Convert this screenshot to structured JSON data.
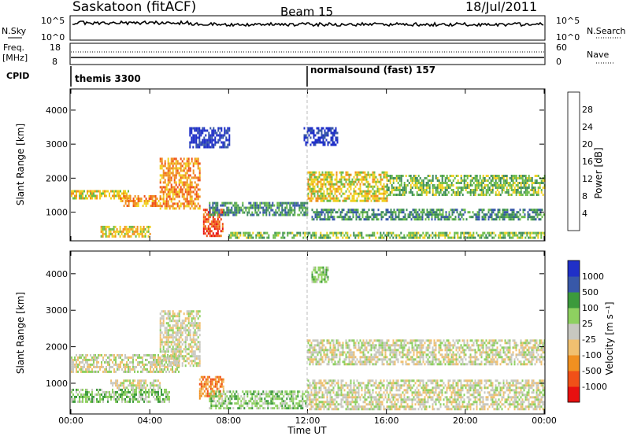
{
  "header": {
    "title": "Saskatoon (fitACF)",
    "beam": "Beam 15",
    "date": "18/Jul/2011"
  },
  "strip_panel": {
    "nsky_label": "N.Sky",
    "nsky_ticks": [
      "10^5",
      "10^0"
    ],
    "nsearch_label": "N.Search",
    "nsearch_ticks": [
      "10^5",
      "10^0"
    ],
    "freq_label": "Freq.",
    "freq_unit": "[MHz]",
    "freq_ticks": [
      "18",
      "8"
    ],
    "nave_label": "Nave",
    "nave_ticks": [
      "60",
      "0"
    ],
    "cpid_label": "CPID",
    "cpid_segments": [
      "themis 3300",
      "normalsound (fast) 157"
    ]
  },
  "colors": {
    "power_scale": [
      "#2030c8",
      "#3858a8",
      "#3c8a5a",
      "#6abb4a",
      "#f0d020",
      "#f09020",
      "#f05018",
      "#e81010"
    ],
    "velocity_scale": [
      "#e81010",
      "#f05018",
      "#f09020",
      "#f0c070",
      "#c8c8c0",
      "#8ed060",
      "#3c9a3c",
      "#3858a8",
      "#2030c8"
    ],
    "ground_scatter": "#c8c8c0"
  },
  "chart_data": [
    {
      "type": "heatmap",
      "panel": "power",
      "ylabel": "Slant Range [km]",
      "y_ticks": [
        "1000",
        "2000",
        "3000",
        "4000"
      ],
      "x_ticks": [
        "00:00",
        "04:00",
        "08:00",
        "12:00",
        "16:00",
        "20:00",
        "00:00"
      ],
      "colorbar_label": "Power [dB]",
      "colorbar_ticks": [
        "4",
        "8",
        "12",
        "16",
        "20",
        "24",
        "28"
      ],
      "xlim": [
        0,
        24
      ],
      "ylim": [
        180,
        4600
      ],
      "bands": [
        {
          "t": [
            0.0,
            3.0
          ],
          "r": [
            1380,
            1650
          ],
          "level": 4
        },
        {
          "t": [
            2.5,
            4.5
          ],
          "r": [
            1200,
            1500
          ],
          "level": 5
        },
        {
          "t": [
            1.5,
            4.0
          ],
          "r": [
            300,
            600
          ],
          "level": 4
        },
        {
          "t": [
            4.5,
            6.5
          ],
          "r": [
            1100,
            2600
          ],
          "level": 5
        },
        {
          "t": [
            6.7,
            7.7
          ],
          "r": [
            300,
            1100
          ],
          "level": 6
        },
        {
          "t": [
            7.0,
            12.0
          ],
          "r": [
            900,
            1300
          ],
          "level": 2
        },
        {
          "t": [
            12.0,
            16.0
          ],
          "r": [
            1300,
            2200
          ],
          "level": 4
        },
        {
          "t": [
            16.0,
            24.0
          ],
          "r": [
            1500,
            2100
          ],
          "level": 3
        },
        {
          "t": [
            12.2,
            24.0
          ],
          "r": [
            800,
            1100
          ],
          "level": 2
        },
        {
          "t": [
            8.0,
            24.0
          ],
          "r": [
            220,
            420
          ],
          "level": 3
        },
        {
          "t": [
            6.0,
            8.0
          ],
          "r": [
            2900,
            3500
          ],
          "level": 0
        },
        {
          "t": [
            11.8,
            13.5
          ],
          "r": [
            3000,
            3500
          ],
          "level": 0
        }
      ]
    },
    {
      "type": "heatmap",
      "panel": "velocity",
      "ylabel": "Slant Range [km]",
      "y_ticks": [
        "1000",
        "2000",
        "3000",
        "4000"
      ],
      "x_ticks": [
        "00:00",
        "04:00",
        "08:00",
        "12:00",
        "16:00",
        "20:00",
        "00:00"
      ],
      "xlabel": "Time UT",
      "colorbar_label": "Velocity [m s⁻¹]",
      "colorbar_ticks": [
        "1000",
        "500",
        "100",
        "25",
        "-25",
        "-100",
        "-500",
        "-1000"
      ],
      "xlim": [
        0,
        24
      ],
      "ylim": [
        180,
        4600
      ],
      "bands": [
        {
          "t": [
            0.0,
            5.5
          ],
          "r": [
            1300,
            1800
          ],
          "level": 4
        },
        {
          "t": [
            0.0,
            5.0
          ],
          "r": [
            500,
            850
          ],
          "level": 5
        },
        {
          "t": [
            2.0,
            4.5
          ],
          "r": [
            850,
            1100
          ],
          "level": 4
        },
        {
          "t": [
            6.5,
            7.7
          ],
          "r": [
            600,
            1200
          ],
          "level": 2
        },
        {
          "t": [
            4.5,
            6.5
          ],
          "r": [
            1500,
            3000
          ],
          "level": 4
        },
        {
          "t": [
            7.0,
            12.0
          ],
          "r": [
            300,
            800
          ],
          "level": 5
        },
        {
          "t": [
            12.0,
            24.0
          ],
          "r": [
            1500,
            2200
          ],
          "level": 4
        },
        {
          "t": [
            12.0,
            24.0
          ],
          "r": [
            300,
            1100
          ],
          "level": 4
        },
        {
          "t": [
            12.2,
            13.0
          ],
          "r": [
            3800,
            4200
          ],
          "level": 5
        }
      ]
    }
  ]
}
